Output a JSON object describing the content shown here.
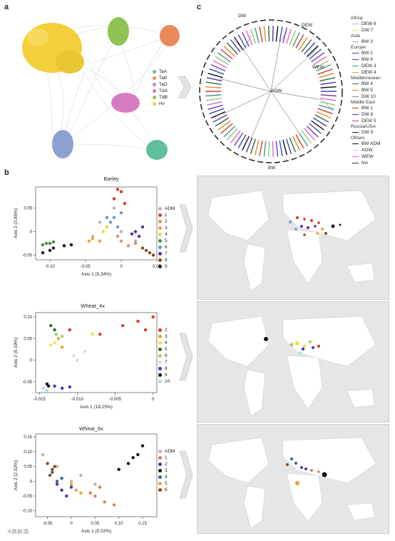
{
  "panel_a": {
    "letter": "a",
    "legend": [
      {
        "label": "TaA",
        "color": "#5fbf9a"
      },
      {
        "label": "TaB",
        "color": "#ea8a5a"
      },
      {
        "label": "TaD",
        "color": "#8e9fd4"
      },
      {
        "label": "TdA",
        "color": "#d77bc0"
      },
      {
        "label": "TdB",
        "color": "#8ec453"
      },
      {
        "label": "Hv",
        "color": "#f2cf3b"
      }
    ]
  },
  "panel_c": {
    "letter": "c",
    "arc_labels": [
      "DW",
      "DEW",
      "WEW",
      "AGW",
      "BW"
    ],
    "legend_groups": [
      {
        "title": "Africa",
        "items": [
          {
            "label": "DEW 6",
            "color": "#9fd38d"
          },
          {
            "label": "DW 7",
            "color": "#f0e26a"
          }
        ]
      },
      {
        "title": "Asia",
        "items": [
          {
            "label": "BW 3",
            "color": "#c79fdf"
          }
        ]
      },
      {
        "title": "Europe",
        "items": [
          {
            "label": "BW 2",
            "color": "#2c4fbf"
          },
          {
            "label": "BW 6",
            "color": "#7b3aa8"
          },
          {
            "label": "DEW 3",
            "color": "#3f9a8d"
          },
          {
            "label": "DEW 4",
            "color": "#8fc96a"
          }
        ]
      },
      {
        "title": "Mediterranean",
        "items": [
          {
            "label": "BW 4",
            "color": "#2a6b4c"
          },
          {
            "label": "BW 5",
            "color": "#e08b2f"
          },
          {
            "label": "DW 10",
            "color": "#8a8a8a"
          }
        ]
      },
      {
        "title": "Middle East",
        "items": [
          {
            "label": "BW 1",
            "color": "#d23b2b"
          },
          {
            "label": "DW 8",
            "color": "#4a3ba8"
          },
          {
            "label": "DEW 5",
            "color": "#b03b3b"
          }
        ]
      },
      {
        "title": "Russia/USA",
        "items": [
          {
            "label": "DW 9",
            "color": "#222222"
          }
        ]
      },
      {
        "title": "Others",
        "items": [
          {
            "label": "BW ADM",
            "color": "#111111"
          },
          {
            "label": "AGW",
            "color": "#b8e0ea"
          },
          {
            "label": "WEW",
            "color": "#d86ad8"
          },
          {
            "label": "NA",
            "color": "#333333"
          }
        ]
      }
    ]
  },
  "panel_b": {
    "letter": "b"
  },
  "chart_data": [
    {
      "type": "scatter",
      "title": "Barley",
      "xlabel": "Axis 1 (5.34%)",
      "ylabel": "Axis 2 (3.85%)",
      "xlim": [
        -0.12,
        0.05
      ],
      "ylim": [
        -0.06,
        0.095
      ],
      "xticks": [
        "-0.10",
        "-0.05",
        "0",
        "0.05"
      ],
      "xtick_values": [
        -0.1,
        -0.05,
        0,
        0.05
      ],
      "yticks": [
        "0.05",
        "0",
        "-0.05"
      ],
      "ytick_values": [
        0.05,
        0,
        -0.05
      ],
      "series": [
        {
          "name": "ADM",
          "color": "#b5b5b5",
          "points": [
            [
              -0.03,
              0.02
            ],
            [
              -0.01,
              0.05
            ],
            [
              0.0,
              0.0
            ],
            [
              0.02,
              -0.02
            ],
            [
              -0.04,
              -0.01
            ]
          ]
        },
        {
          "name": "1",
          "color": "#d7382c",
          "points": [
            [
              0.0,
              0.085
            ],
            [
              -0.005,
              0.09
            ],
            [
              0.005,
              0.06
            ],
            [
              -0.01,
              0.07
            ]
          ]
        },
        {
          "name": "2",
          "color": "#e78a5c",
          "points": [
            [
              0.0,
              -0.02
            ],
            [
              0.01,
              -0.03
            ],
            [
              0.02,
              -0.025
            ],
            [
              -0.005,
              -0.01
            ]
          ]
        },
        {
          "name": "3",
          "color": "#e8a534",
          "points": [
            [
              -0.04,
              -0.015
            ],
            [
              -0.03,
              -0.02
            ],
            [
              -0.045,
              -0.02
            ]
          ]
        },
        {
          "name": "4",
          "color": "#f2d43b",
          "points": [
            [
              -0.02,
              0.01
            ],
            [
              -0.025,
              0.0
            ]
          ]
        },
        {
          "name": "5",
          "color": "#4b8a3b",
          "points": [
            [
              -0.1,
              -0.025
            ],
            [
              -0.11,
              -0.028
            ],
            [
              -0.095,
              -0.022
            ],
            [
              -0.105,
              -0.025
            ]
          ]
        },
        {
          "name": "6",
          "color": "#6f94d1",
          "points": [
            [
              -0.01,
              0.03
            ],
            [
              -0.015,
              0.02
            ],
            [
              0.0,
              0.04
            ],
            [
              -0.02,
              0.03
            ],
            [
              -0.005,
              0.01
            ]
          ]
        },
        {
          "name": "7",
          "color": "#5a2ea6",
          "points": [
            [
              0.02,
              0.0
            ],
            [
              0.025,
              -0.01
            ],
            [
              0.03,
              0.01
            ],
            [
              0.015,
              -0.005
            ]
          ]
        },
        {
          "name": "8",
          "color": "#8a4a1c",
          "points": [
            [
              0.035,
              -0.04
            ],
            [
              0.04,
              -0.045
            ],
            [
              0.03,
              -0.035
            ],
            [
              0.045,
              -0.05
            ]
          ]
        },
        {
          "name": "9",
          "color": "#111111",
          "points": [
            [
              -0.1,
              -0.04
            ],
            [
              -0.11,
              -0.045
            ],
            [
              -0.095,
              -0.035
            ],
            [
              -0.08,
              -0.03
            ],
            [
              -0.07,
              -0.028
            ]
          ]
        }
      ]
    },
    {
      "type": "scatter",
      "title": "Wheat_4x",
      "xlabel": "Axis 1 (18.25%)",
      "ylabel": "Axis 2 (5.19%)",
      "xlim": [
        -0.0155,
        0.0005
      ],
      "ylim": [
        -0.075,
        0.11
      ],
      "xticks": [
        "-0.015",
        "-0.010",
        "-0.005",
        "0"
      ],
      "xtick_values": [
        -0.015,
        -0.01,
        -0.005,
        0
      ],
      "yticks": [
        "0.10",
        "0.05",
        "0",
        "-0.05"
      ],
      "ytick_values": [
        0.1,
        0.05,
        0,
        -0.05
      ],
      "series": [
        {
          "name": "2",
          "color": "#d7382c",
          "points": [
            [
              -0.004,
              0.08
            ],
            [
              -0.002,
              0.09
            ],
            [
              -0.001,
              0.07
            ],
            [
              -0.007,
              0.06
            ],
            [
              -0.011,
              0.07
            ],
            [
              0.0,
              0.1
            ]
          ]
        },
        {
          "name": "3",
          "color": "#e8a534",
          "points": [
            [
              -0.012,
              0.03
            ],
            [
              -0.0125,
              0.05
            ]
          ]
        },
        {
          "name": "4",
          "color": "#f2e24a",
          "points": [
            [
              -0.013,
              0.04
            ],
            [
              -0.0135,
              0.035
            ],
            [
              -0.008,
              0.06
            ]
          ]
        },
        {
          "name": "5",
          "color": "#2e6b2e",
          "points": [
            [
              -0.0135,
              0.08
            ],
            [
              -0.013,
              0.07
            ]
          ]
        },
        {
          "name": "6",
          "color": "#9ed06a",
          "points": [
            [
              -0.0128,
              0.06
            ],
            [
              -0.012,
              0.055
            ]
          ]
        },
        {
          "name": "7",
          "color": "#c6dff0",
          "points": [
            [
              -0.01,
              0.0
            ],
            [
              -0.009,
              0.02
            ],
            [
              -0.0105,
              0.01
            ]
          ]
        },
        {
          "name": "8",
          "color": "#3b3bd0",
          "points": [
            [
              -0.013,
              -0.06
            ],
            [
              -0.012,
              -0.065
            ],
            [
              -0.011,
              -0.062
            ]
          ]
        },
        {
          "name": "9",
          "color": "#111111",
          "points": [
            [
              -0.014,
              -0.055
            ],
            [
              -0.0138,
              -0.06
            ]
          ]
        },
        {
          "name": "10",
          "color": "#a8e0e4",
          "points": [
            [
              -0.0145,
              -0.065
            ],
            [
              -0.014,
              -0.07
            ]
          ]
        }
      ]
    },
    {
      "type": "scatter",
      "title": "Wheat_6x",
      "xlabel": "Axis 1 (5.02%)",
      "ylabel": "Axis 2 (2.32%)",
      "xlim": [
        -0.075,
        0.18
      ],
      "ylim": [
        -0.12,
        0.16
      ],
      "xticks": [
        "-0.05",
        "0",
        "0.05",
        "0.10",
        "0.15"
      ],
      "xtick_values": [
        -0.05,
        0,
        0.05,
        0.1,
        0.15
      ],
      "yticks": [
        "0.15",
        "0.10",
        "0.05",
        "0",
        "-0.05",
        "-0.10"
      ],
      "ytick_values": [
        0.15,
        0.1,
        0.05,
        0,
        -0.05,
        -0.1
      ],
      "series": [
        {
          "name": "ADM",
          "color": "#b5b5b5",
          "points": [
            [
              -0.06,
              0.09
            ],
            [
              -0.03,
              0.05
            ],
            [
              0.0,
              0.0
            ],
            [
              0.02,
              0.02
            ],
            [
              0.05,
              -0.01
            ]
          ]
        },
        {
          "name": "1",
          "color": "#e07a5a",
          "points": [
            [
              0.05,
              -0.05
            ],
            [
              0.07,
              -0.07
            ],
            [
              0.04,
              -0.04
            ],
            [
              0.09,
              -0.08
            ],
            [
              0.06,
              -0.02
            ]
          ]
        },
        {
          "name": "2",
          "color": "#5a2ea6",
          "points": [
            [
              -0.02,
              -0.03
            ],
            [
              -0.01,
              -0.05
            ],
            [
              0.0,
              -0.02
            ],
            [
              -0.03,
              -0.01
            ]
          ]
        },
        {
          "name": "3",
          "color": "#111111",
          "points": [
            [
              0.1,
              0.04
            ],
            [
              0.12,
              0.06
            ],
            [
              0.14,
              0.09
            ],
            [
              0.15,
              0.12
            ],
            [
              0.13,
              0.08
            ]
          ]
        },
        {
          "name": "4",
          "color": "#2e6b8a",
          "points": [
            [
              -0.04,
              0.03
            ],
            [
              -0.03,
              0.0
            ],
            [
              -0.02,
              0.01
            ]
          ]
        },
        {
          "name": "5",
          "color": "#e8a534",
          "points": [
            [
              0.0,
              -0.01
            ],
            [
              0.01,
              -0.03
            ],
            [
              0.02,
              -0.04
            ]
          ]
        },
        {
          "name": "6",
          "color": "#8a4a1c",
          "points": [
            [
              -0.05,
              0.06
            ],
            [
              -0.04,
              0.04
            ],
            [
              -0.045,
              0.02
            ],
            [
              -0.035,
              0.05
            ]
          ]
        }
      ]
    }
  ],
  "watermark": "大数据 圆"
}
